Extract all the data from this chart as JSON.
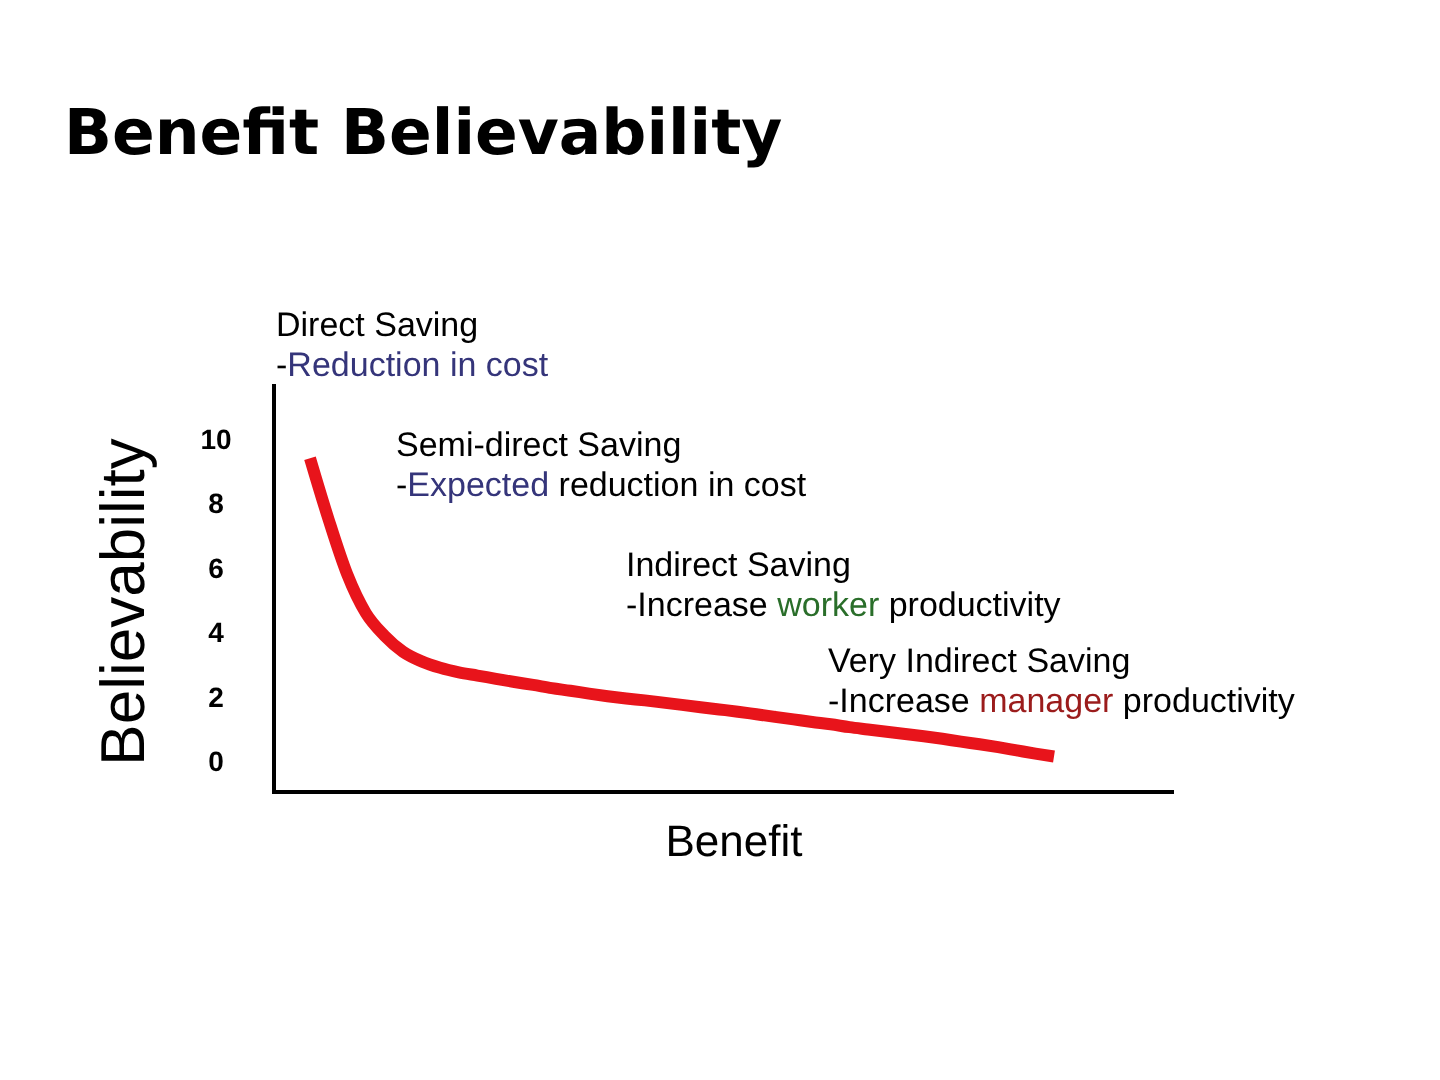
{
  "chart_data": {
    "type": "line",
    "title": "Benefit Believability",
    "xlabel": "Benefit",
    "ylabel": "Believability",
    "categories": [
      null,
      null,
      null,
      null,
      null,
      null,
      null,
      null,
      null,
      null,
      null,
      null,
      null,
      null,
      null,
      null,
      null,
      null,
      null,
      null,
      null,
      null,
      null,
      null,
      null,
      null,
      null,
      null,
      null,
      null,
      null,
      null,
      null,
      null,
      null,
      null,
      null,
      null,
      null,
      null,
      null
    ],
    "series": [
      {
        "color": "#e8141b",
        "values": [
          9.4,
          7.5,
          5.8,
          4.6,
          3.9,
          3.4,
          3.1,
          2.9,
          2.76,
          2.66,
          2.56,
          2.46,
          2.37,
          2.27,
          2.19,
          2.1,
          2.02,
          1.95,
          1.89,
          1.82,
          1.75,
          1.68,
          1.61,
          1.54,
          1.46,
          1.38,
          1.3,
          1.22,
          1.15,
          1.06,
          0.99,
          0.92,
          0.85,
          0.78,
          0.7,
          0.61,
          0.53,
          0.44,
          0.34,
          0.24,
          0.15
        ]
      }
    ],
    "ylim": [
      -0.95,
      11.7
    ],
    "yticks": [
      0,
      2,
      4,
      6,
      8,
      10
    ],
    "annotations": [
      "Direct Saving\n-Reduction in cost",
      "Semi-direct Saving\n-Expected reduction in cost",
      "Indirect Saving\n-Increase worker productivity",
      "Very Indirect Saving\n-Increase manager productivity"
    ]
  }
}
